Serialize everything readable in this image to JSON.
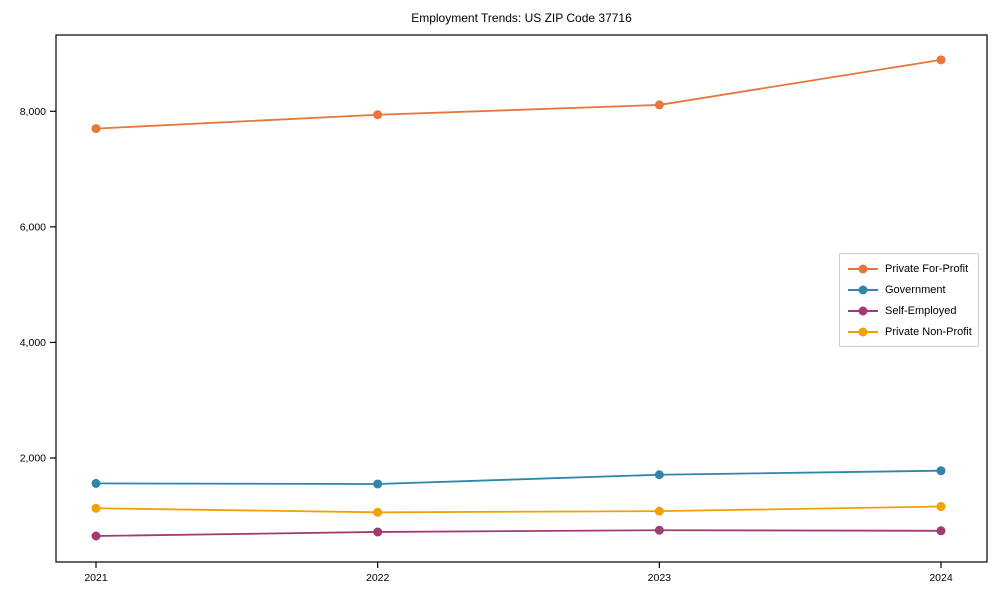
{
  "chart_data": {
    "type": "line",
    "title": "Employment Trends: US ZIP Code 37716",
    "categories": [
      "2021",
      "2022",
      "2023",
      "2024"
    ],
    "series": [
      {
        "name": "Private For-Profit",
        "color": "#E8763C",
        "values": [
          7700,
          7940,
          8110,
          8890
        ]
      },
      {
        "name": "Government",
        "color": "#2E86AB",
        "values": [
          1560,
          1550,
          1710,
          1780
        ]
      },
      {
        "name": "Self-Employed",
        "color": "#A23B72",
        "values": [
          650,
          720,
          750,
          740
        ]
      },
      {
        "name": "Private Non-Profit",
        "color": "#F2A104",
        "values": [
          1130,
          1060,
          1080,
          1160
        ]
      }
    ],
    "xlabel": "",
    "ylabel": "",
    "ylim": [
      200,
      9320
    ],
    "yticks": [
      2000,
      4000,
      6000,
      8000
    ],
    "ytick_labels": [
      "2,000",
      "4,000",
      "6,000",
      "8,000"
    ],
    "grid": false,
    "legend_position": "center-right",
    "axis_color": "#000000",
    "background": "#ffffff",
    "marker": "circle"
  }
}
